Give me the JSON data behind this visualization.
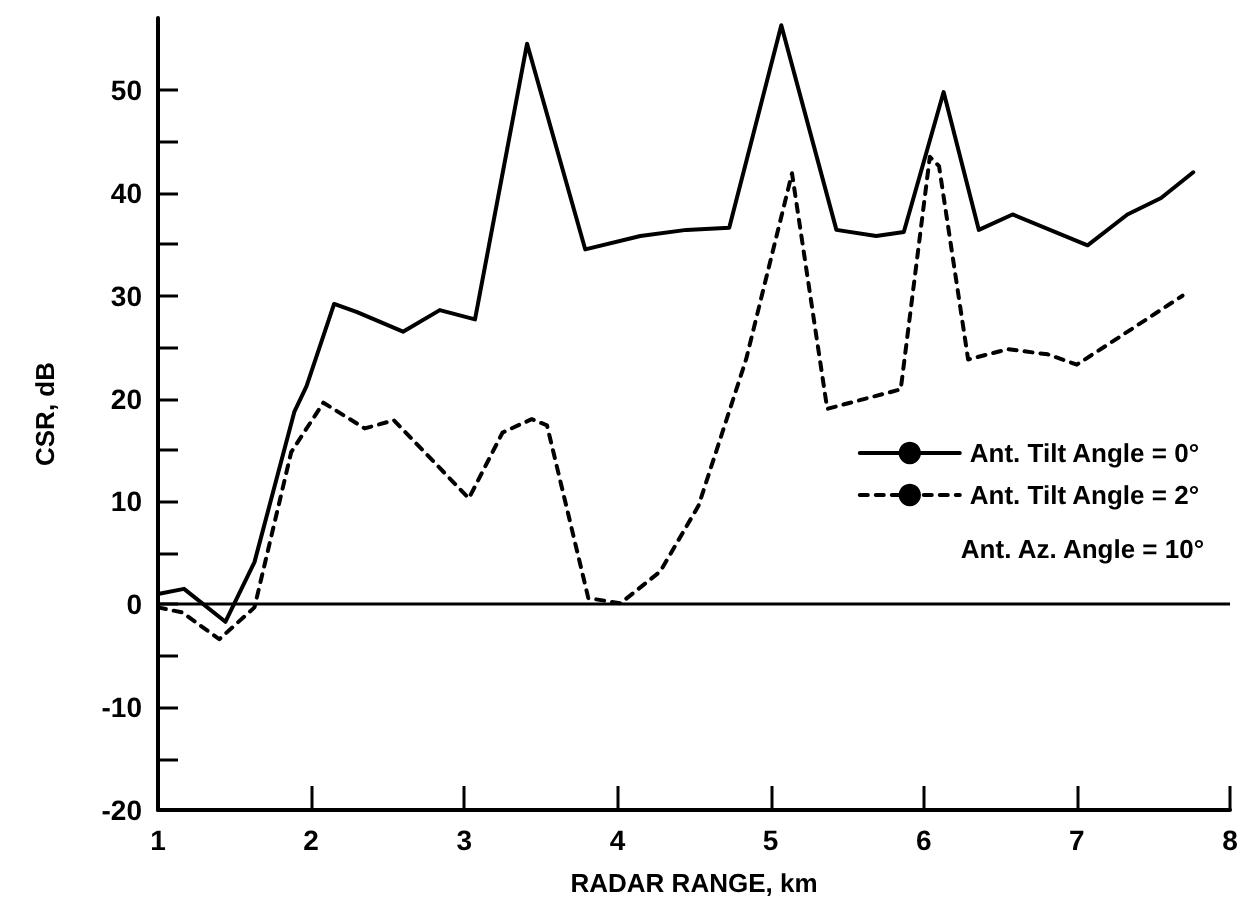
{
  "chart_data": {
    "type": "line",
    "xlabel": "RADAR RANGE, km",
    "ylabel": "CSR, dB",
    "xlim": [
      1,
      8
    ],
    "xticks": [
      1,
      2,
      3,
      4,
      5,
      6,
      7,
      8
    ],
    "ylim": [
      -20,
      57
    ],
    "yticks": [
      -20,
      {
        "value": -15,
        "label": null
      },
      -10,
      {
        "value": -5,
        "label": null
      },
      0,
      {
        "value": 5,
        "label": null
      },
      10,
      {
        "value": 15,
        "label": null
      },
      20,
      {
        "value": 25,
        "label": null
      },
      30,
      {
        "value": 35,
        "label": null
      },
      40,
      {
        "value": 45,
        "label": null
      },
      50
    ],
    "grid": false,
    "marker": "none",
    "legend": "right",
    "ref_lines": [
      {
        "axis": "y",
        "value": 0,
        "color": "#000000",
        "line_style": "solid"
      }
    ],
    "annotations": [
      "Ant. Az. Angle = 10°"
    ],
    "series": [
      {
        "name": "Ant. Tilt Angle = 0°",
        "color": "#000000",
        "line_style": "solid",
        "x": [
          1.0,
          1.17,
          1.44,
          1.63,
          1.89,
          1.97,
          2.15,
          2.3,
          2.6,
          2.84,
          3.07,
          3.41,
          3.79,
          4.15,
          4.45,
          4.73,
          5.07,
          5.43,
          5.69,
          5.87,
          6.13,
          6.36,
          6.58,
          7.07,
          7.33,
          7.55,
          7.76
        ],
        "values": [
          1.0,
          1.5,
          -1.7,
          4.1,
          18.7,
          21.2,
          29.2,
          28.4,
          26.5,
          28.6,
          27.7,
          54.5,
          34.5,
          35.8,
          36.4,
          36.6,
          56.3,
          36.4,
          35.8,
          36.2,
          49.8,
          36.4,
          37.9,
          34.9,
          37.9,
          39.5,
          42.0
        ]
      },
      {
        "name": "Ant. Tilt Angle = 2°",
        "color": "#000000",
        "line_style": "dashed",
        "x": [
          1.0,
          1.16,
          1.4,
          1.63,
          1.87,
          2.08,
          2.35,
          2.54,
          3.03,
          3.25,
          3.44,
          3.54,
          3.81,
          4.02,
          4.28,
          4.53,
          4.84,
          5.14,
          5.37,
          5.85,
          6.04,
          6.1,
          6.29,
          6.55,
          6.81,
          7.0,
          7.29,
          7.69
        ],
        "values": [
          -0.3,
          -0.8,
          -3.4,
          -0.3,
          14.8,
          19.6,
          17.1,
          17.9,
          10.3,
          16.7,
          18.0,
          17.4,
          0.6,
          0.1,
          3.2,
          9.6,
          23.8,
          41.9,
          19.0,
          20.9,
          43.5,
          42.6,
          23.8,
          24.8,
          24.3,
          23.3,
          26.1,
          30.0
        ]
      }
    ]
  }
}
